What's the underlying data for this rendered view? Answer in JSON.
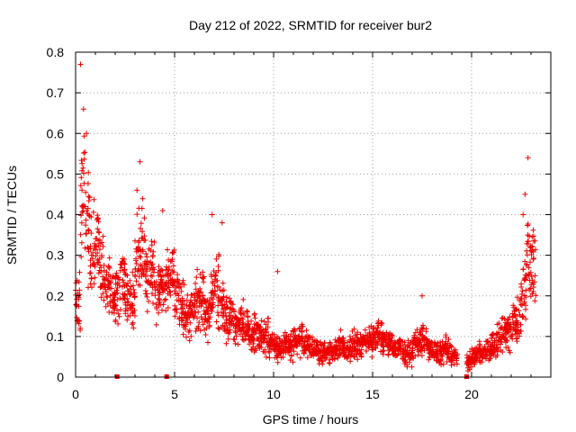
{
  "chart_data": {
    "type": "scatter",
    "title": "Day 212 of 2022, SRMTID for receiver bur2",
    "xlabel": "GPS time / hours",
    "ylabel": "SRMTID / TECUs",
    "xlim": [
      0,
      24
    ],
    "ylim": [
      0,
      0.8
    ],
    "x_ticks": [
      0,
      5,
      10,
      15,
      20
    ],
    "y_ticks": [
      0,
      0.1,
      0.2,
      0.3,
      0.4,
      0.5,
      0.6,
      0.7,
      0.8
    ],
    "x_tick_labels": [
      "0",
      "5",
      "10",
      "15",
      "20"
    ],
    "y_tick_labels": [
      "0",
      "0.1",
      "0.2",
      "0.3",
      "0.4",
      "0.5",
      "0.6",
      "0.7",
      "0.8"
    ],
    "grid": true,
    "marker": "plus",
    "color": "#ee0000",
    "envelope_note": "Dense cloud of points; series below gives the approximate center and spread per time bin",
    "series": [
      {
        "name": "SRMTID",
        "x": [
          0.0,
          0.25,
          0.5,
          0.75,
          1.0,
          1.25,
          1.5,
          1.75,
          2.0,
          2.25,
          2.5,
          2.75,
          3.0,
          3.25,
          3.5,
          3.75,
          4.0,
          4.25,
          4.5,
          4.75,
          5.0,
          5.25,
          5.5,
          5.75,
          6.0,
          6.25,
          6.5,
          6.75,
          7.0,
          7.25,
          7.5,
          7.75,
          8.0,
          8.25,
          8.5,
          8.75,
          9.0,
          9.25,
          9.5,
          9.75,
          10.0,
          10.25,
          10.5,
          10.75,
          11.0,
          11.25,
          11.5,
          11.75,
          12.0,
          12.25,
          12.5,
          12.75,
          13.0,
          13.25,
          13.5,
          13.75,
          14.0,
          14.25,
          14.5,
          14.75,
          15.0,
          15.25,
          15.5,
          15.75,
          16.0,
          16.25,
          16.5,
          16.75,
          17.0,
          17.25,
          17.5,
          17.75,
          18.0,
          18.25,
          18.5,
          18.75,
          19.0,
          19.75,
          20.0,
          20.25,
          20.5,
          20.75,
          21.0,
          21.25,
          21.5,
          21.75,
          22.0,
          22.25,
          22.5,
          22.75,
          23.0
        ],
        "center": [
          0.18,
          0.45,
          0.38,
          0.3,
          0.32,
          0.25,
          0.22,
          0.2,
          0.22,
          0.24,
          0.2,
          0.18,
          0.3,
          0.32,
          0.25,
          0.26,
          0.2,
          0.22,
          0.24,
          0.25,
          0.2,
          0.17,
          0.15,
          0.16,
          0.18,
          0.2,
          0.16,
          0.2,
          0.22,
          0.18,
          0.14,
          0.15,
          0.13,
          0.13,
          0.12,
          0.1,
          0.11,
          0.1,
          0.1,
          0.08,
          0.08,
          0.07,
          0.08,
          0.08,
          0.09,
          0.1,
          0.08,
          0.07,
          0.07,
          0.06,
          0.06,
          0.06,
          0.07,
          0.08,
          0.07,
          0.08,
          0.08,
          0.08,
          0.09,
          0.09,
          0.1,
          0.1,
          0.09,
          0.08,
          0.07,
          0.07,
          0.06,
          0.06,
          0.08,
          0.09,
          0.09,
          0.07,
          0.06,
          0.06,
          0.07,
          0.06,
          0.05,
          0.04,
          0.05,
          0.06,
          0.06,
          0.07,
          0.08,
          0.09,
          0.1,
          0.12,
          0.14,
          0.15,
          0.2,
          0.3,
          0.28
        ],
        "spread": [
          0.1,
          0.25,
          0.22,
          0.15,
          0.15,
          0.12,
          0.1,
          0.1,
          0.1,
          0.1,
          0.1,
          0.1,
          0.15,
          0.16,
          0.12,
          0.12,
          0.1,
          0.1,
          0.12,
          0.12,
          0.1,
          0.1,
          0.08,
          0.08,
          0.1,
          0.1,
          0.08,
          0.1,
          0.12,
          0.1,
          0.08,
          0.08,
          0.07,
          0.07,
          0.06,
          0.06,
          0.07,
          0.06,
          0.06,
          0.04,
          0.05,
          0.04,
          0.04,
          0.05,
          0.05,
          0.06,
          0.05,
          0.04,
          0.04,
          0.04,
          0.03,
          0.04,
          0.04,
          0.05,
          0.04,
          0.05,
          0.05,
          0.05,
          0.05,
          0.05,
          0.06,
          0.06,
          0.05,
          0.04,
          0.04,
          0.04,
          0.04,
          0.04,
          0.05,
          0.06,
          0.05,
          0.04,
          0.04,
          0.04,
          0.04,
          0.04,
          0.03,
          0.03,
          0.03,
          0.04,
          0.04,
          0.04,
          0.05,
          0.06,
          0.06,
          0.07,
          0.08,
          0.1,
          0.12,
          0.18,
          0.2
        ]
      }
    ],
    "peaks": [
      {
        "x": 0.25,
        "y": 0.77
      },
      {
        "x": 0.4,
        "y": 0.66
      },
      {
        "x": 0.55,
        "y": 0.6
      },
      {
        "x": 3.25,
        "y": 0.53
      },
      {
        "x": 3.1,
        "y": 0.46
      },
      {
        "x": 4.4,
        "y": 0.41
      },
      {
        "x": 6.9,
        "y": 0.4
      },
      {
        "x": 7.4,
        "y": 0.38
      },
      {
        "x": 10.2,
        "y": 0.26
      },
      {
        "x": 17.5,
        "y": 0.2
      },
      {
        "x": 22.85,
        "y": 0.54
      },
      {
        "x": 22.7,
        "y": 0.45
      },
      {
        "x": 22.6,
        "y": 0.4
      }
    ],
    "gap_markers_x": [
      2.1,
      4.6,
      19.75
    ]
  }
}
